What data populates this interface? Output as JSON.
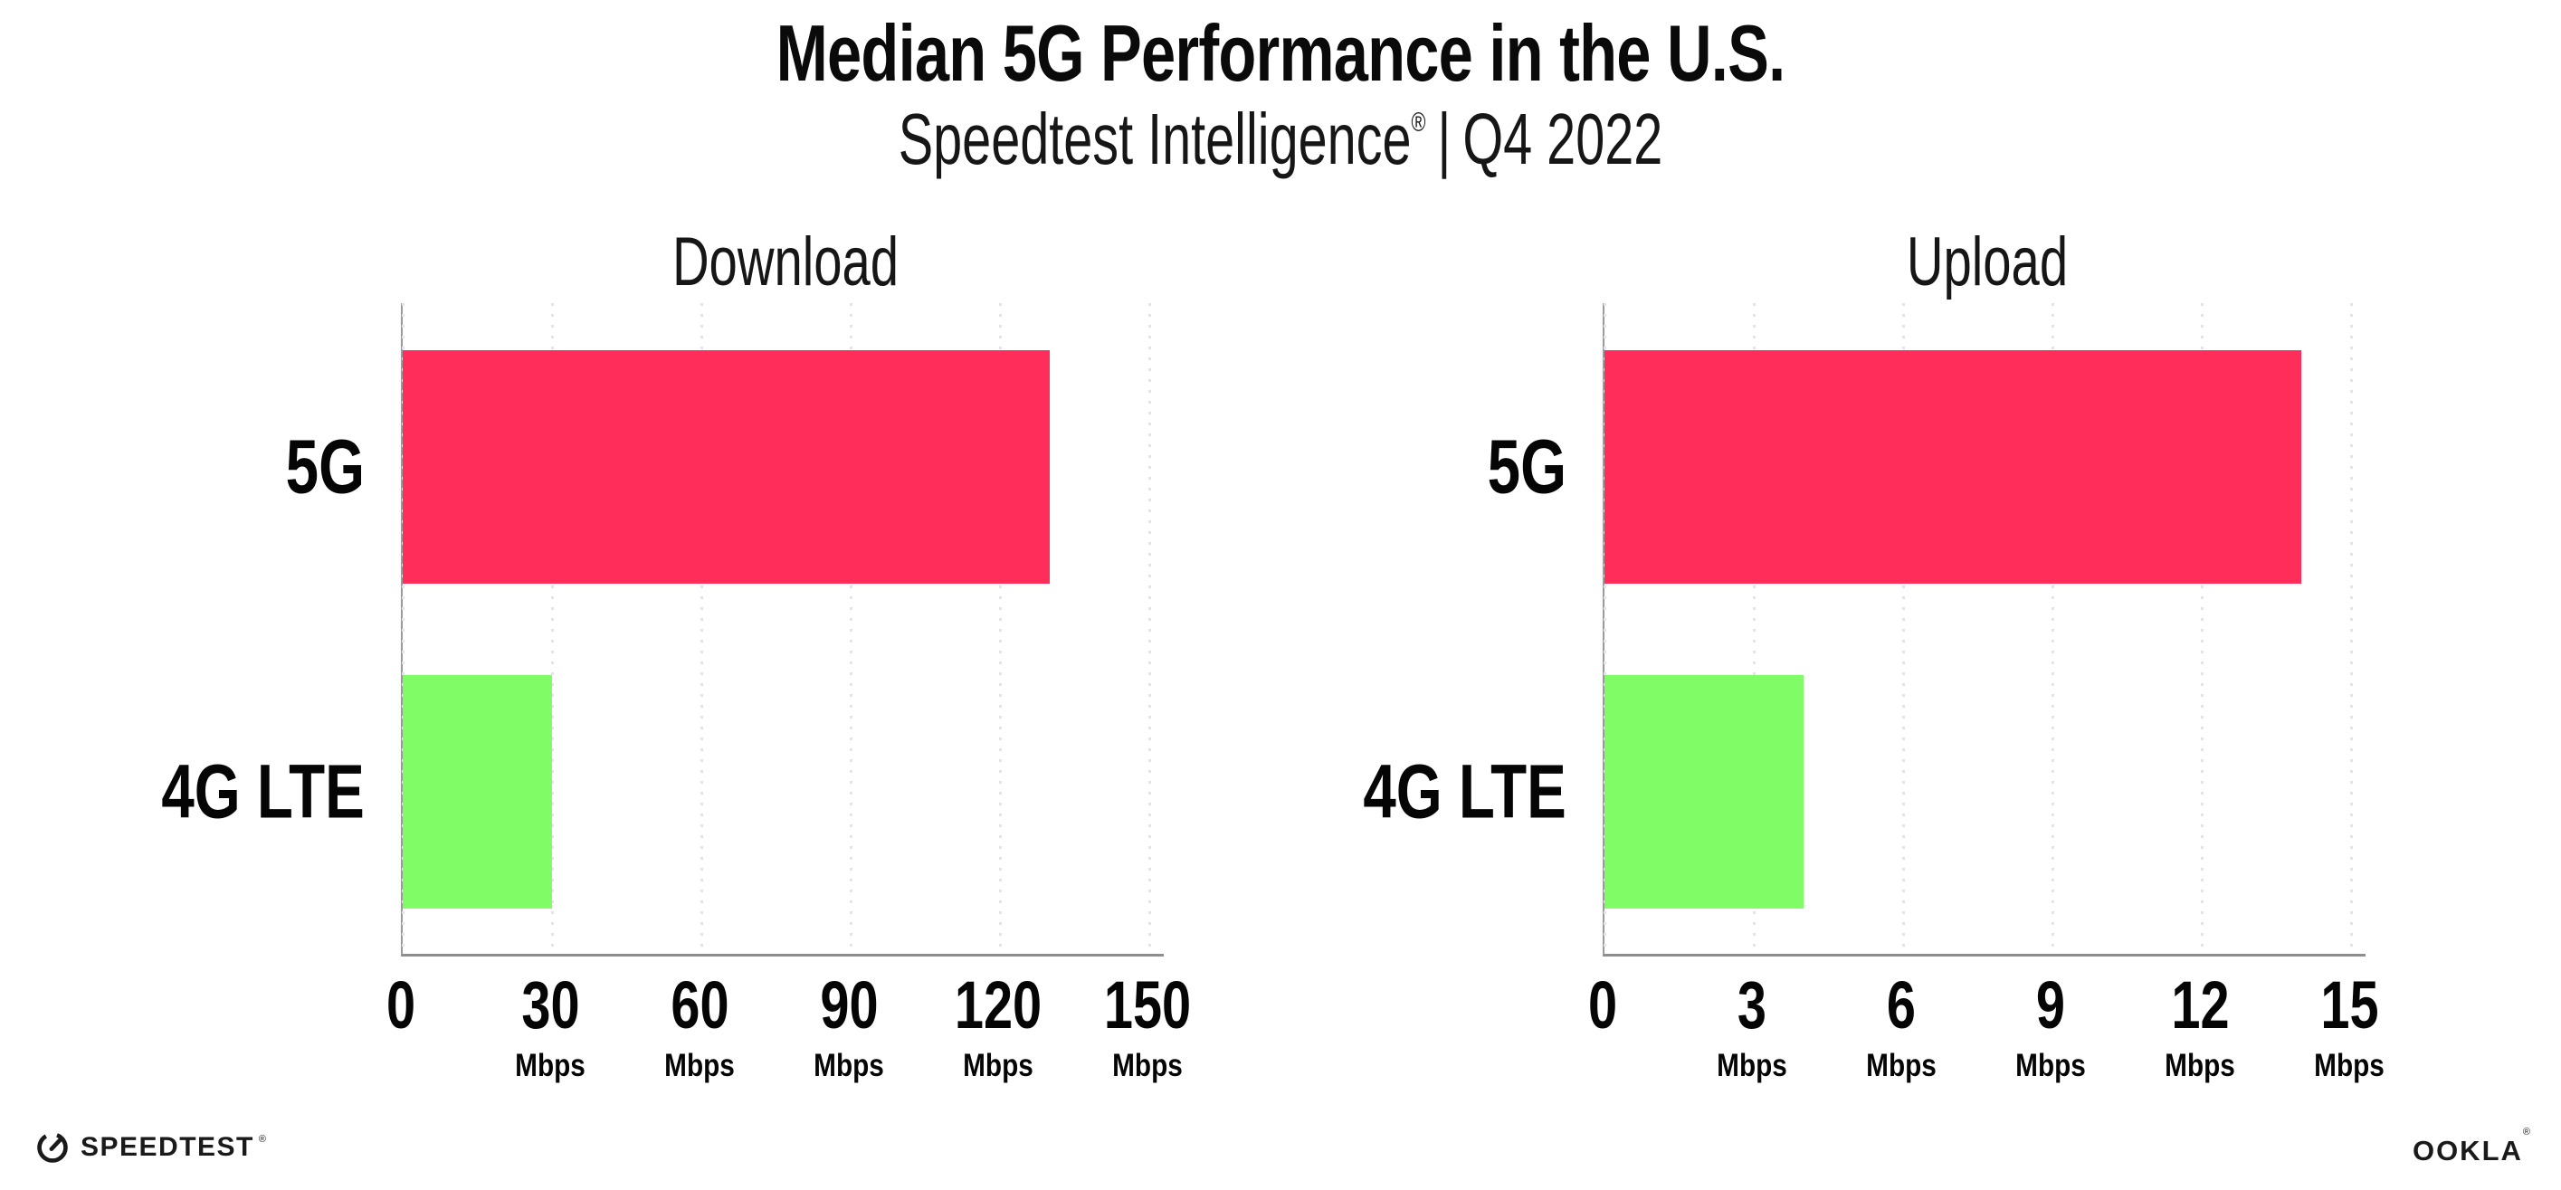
{
  "title": "Median 5G Performance in the U.S.",
  "subtitle": {
    "brand": "Speedtest Intelligence",
    "registered": "®",
    "separator": "|",
    "period": "Q4 2022"
  },
  "colors": {
    "bar_5g": "#ff2d5a",
    "bar_4g_lte": "#80fc66",
    "gridline": "#e4e2f1",
    "axis_line": "#8e8e8e",
    "axis_spine": "#9a9a9a",
    "text": "#0a0a0a"
  },
  "chart_data": [
    {
      "type": "bar",
      "orientation": "horizontal",
      "title": "Download",
      "categories": [
        "5G",
        "4G LTE"
      ],
      "values": [
        130,
        30
      ],
      "value_unit": "Mbps",
      "xlim": [
        0,
        150
      ],
      "xticks": [
        0,
        30,
        60,
        90,
        120,
        150
      ],
      "xtick_unit_label": "Mbps",
      "bar_colors": [
        "#ff2d5a",
        "#80fc66"
      ],
      "grid": "dotted vertical gridlines at each tick",
      "legend": "none"
    },
    {
      "type": "bar",
      "orientation": "horizontal",
      "title": "Upload",
      "categories": [
        "5G",
        "4G LTE"
      ],
      "values": [
        14,
        4
      ],
      "value_unit": "Mbps",
      "xlim": [
        0,
        15
      ],
      "xticks": [
        0,
        3,
        6,
        9,
        12,
        15
      ],
      "xtick_unit_label": "Mbps",
      "bar_colors": [
        "#ff2d5a",
        "#80fc66"
      ],
      "grid": "dotted vertical gridlines at each tick",
      "legend": "none"
    }
  ],
  "footer": {
    "speedtest_icon": "gauge-icon",
    "speedtest_label": "SPEEDTEST",
    "speedtest_registered": "®",
    "ookla_label": "OOKLA",
    "ookla_registered": "®"
  }
}
